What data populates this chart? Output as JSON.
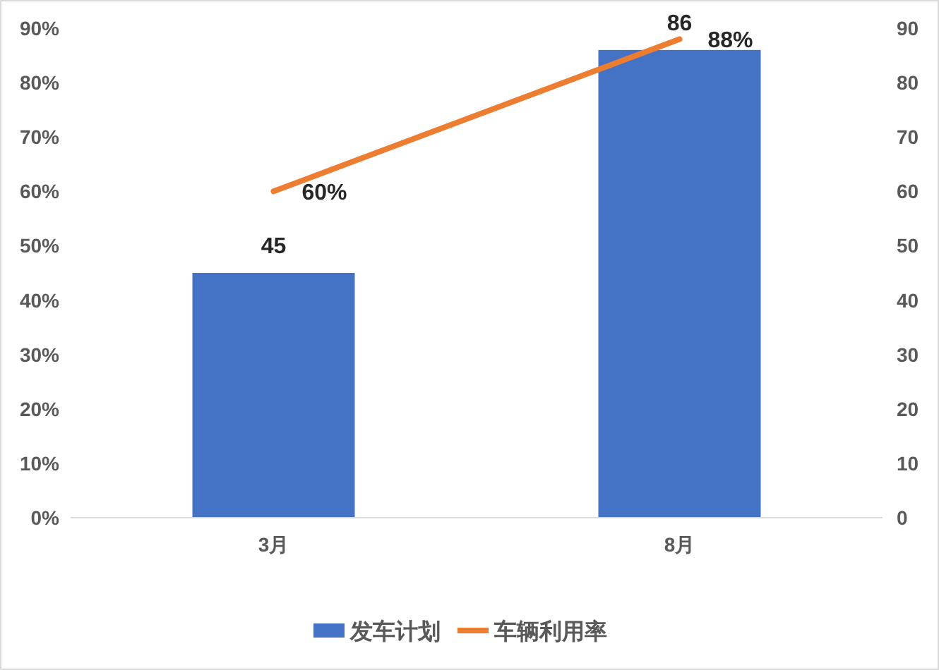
{
  "chart_data": {
    "type": "bar",
    "categories": [
      "3月",
      "8月"
    ],
    "series": [
      {
        "name": "发车计划",
        "axis": "y2",
        "color": "#4472c4",
        "values": [
          45,
          86
        ],
        "value_labels": [
          "45",
          "86"
        ]
      },
      {
        "name": "车辆利用率",
        "type": "line",
        "color": "#ed7d31",
        "values": [
          60,
          88
        ],
        "value_labels": [
          "60%",
          "88%"
        ]
      }
    ],
    "ylim": [
      0,
      90
    ],
    "yticks": [
      {
        "value": 0,
        "label": "0%"
      },
      {
        "value": 10,
        "label": "10%"
      },
      {
        "value": 20,
        "label": "20%"
      },
      {
        "value": 30,
        "label": "30%"
      },
      {
        "value": 40,
        "label": "40%"
      },
      {
        "value": 50,
        "label": "50%"
      },
      {
        "value": 60,
        "label": "60%"
      },
      {
        "value": 70,
        "label": "70%"
      },
      {
        "value": 80,
        "label": "80%"
      },
      {
        "value": 90,
        "label": "90%"
      }
    ],
    "y2lim": [
      0,
      90
    ],
    "y2ticks": [
      0,
      10,
      20,
      30,
      40,
      50,
      60,
      70,
      80,
      90
    ],
    "grid": false,
    "legend": "bottom"
  }
}
